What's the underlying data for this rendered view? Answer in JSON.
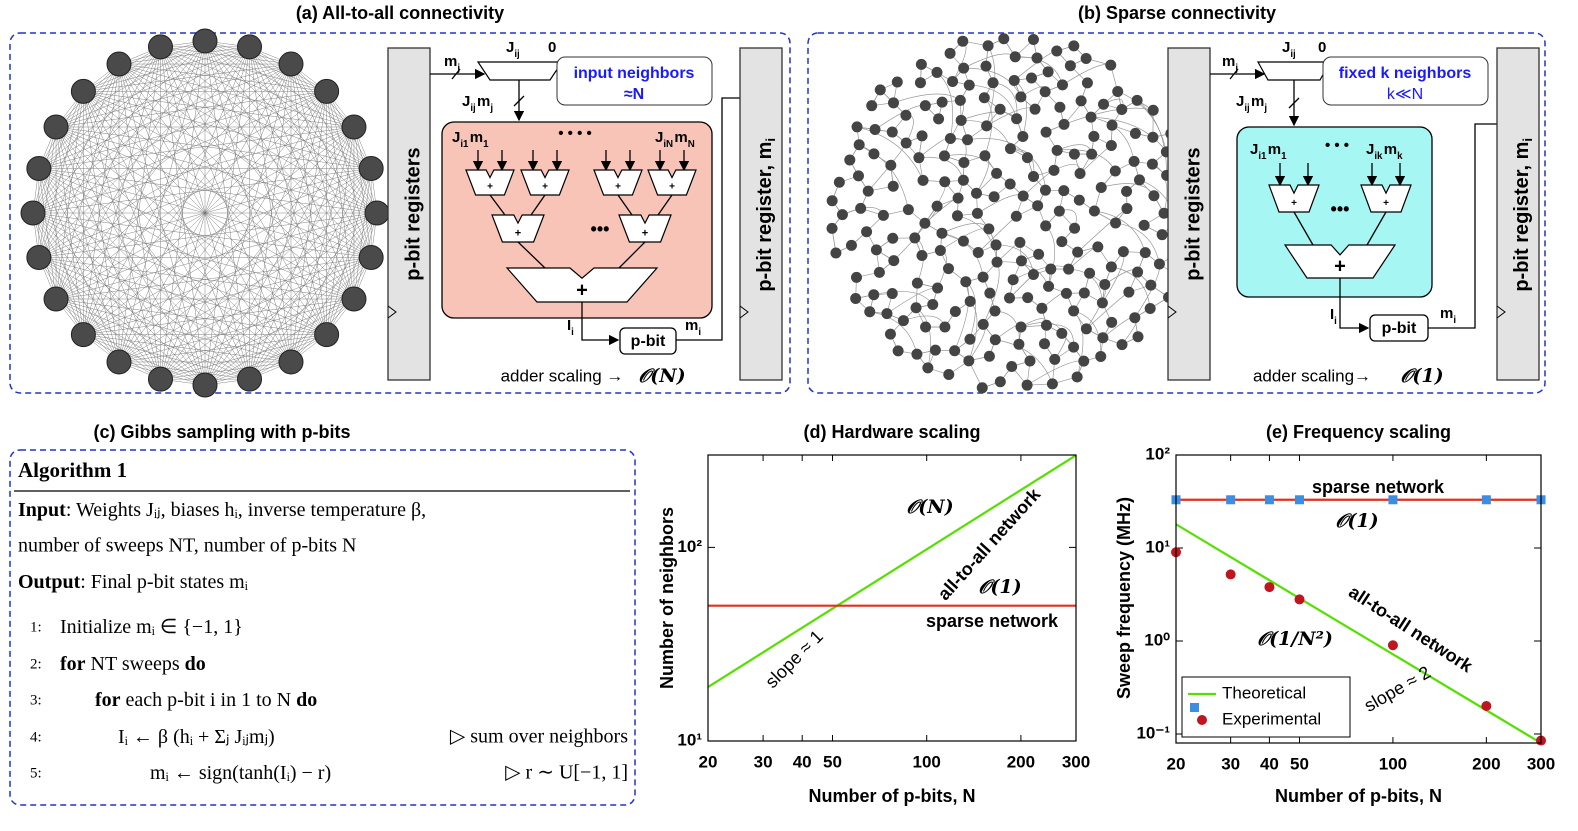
{
  "panel_a": {
    "title": "(a) All-to-all connectivity",
    "registers": "p-bit registers",
    "mux_input": {
      "base": "m",
      "sub": "j"
    },
    "mux_weight": {
      "base": "J",
      "sub": "ij"
    },
    "mux_zero": "0",
    "mux_output": [
      {
        "base": "J",
        "sub": "ij"
      },
      {
        "base": "m",
        "sub": "j"
      }
    ],
    "neighbors": [
      "input neighbors",
      "≈N"
    ],
    "adder_inputs": [
      [
        {
          "base": "J",
          "sub": "i1"
        },
        {
          "base": "m",
          "sub": "1"
        }
      ],
      "• • • •",
      [
        {
          "base": "J",
          "sub": "iN"
        },
        {
          "base": "m",
          "sub": "N"
        }
      ]
    ],
    "adder_sign": "+",
    "ellipsis": "•••",
    "pbit": "p-bit",
    "pbit_input": {
      "base": "I",
      "sub": "i"
    },
    "pbit_output": {
      "base": "m",
      "sub": "i"
    },
    "register_out": {
      "base": "p-bit register, m",
      "sub": "i"
    },
    "scaling_label": "adder scaling →",
    "scaling_value": "𝒪(N)"
  },
  "panel_b": {
    "title": "(b) Sparse connectivity",
    "registers": "p-bit registers",
    "mux_input": {
      "base": "m",
      "sub": "j"
    },
    "mux_weight": {
      "base": "J",
      "sub": "ij"
    },
    "mux_zero": "0",
    "mux_output": [
      {
        "base": "J",
        "sub": "ij"
      },
      {
        "base": "m",
        "sub": "j"
      }
    ],
    "neighbors": [
      "fixed k neighbors",
      "k≪N"
    ],
    "adder_inputs": [
      [
        {
          "base": "J",
          "sub": "i1"
        },
        {
          "base": "m",
          "sub": "1"
        }
      ],
      "• • •",
      [
        {
          "base": "J",
          "sub": "ik"
        },
        {
          "base": "m",
          "sub": "k"
        }
      ]
    ],
    "adder_sign": "+",
    "ellipsis": "•••",
    "pbit": "p-bit",
    "pbit_input": {
      "base": "I",
      "sub": "i"
    },
    "pbit_output": {
      "base": "m",
      "sub": "i"
    },
    "register_out": {
      "base": "p-bit register, m",
      "sub": "i"
    },
    "scaling_label": "adder scaling→",
    "scaling_value": "𝒪(1)"
  },
  "algorithm": {
    "heading": "(c) Gibbs sampling with p-bits",
    "title": "Algorithm 1",
    "input": [
      {
        "text": "Input",
        "bold": true
      },
      ": Weights Jᵢⱼ, biases hᵢ, inverse temperature β,"
    ],
    "input_cont": "number of sweeps NT, number of p-bits N",
    "output": [
      {
        "text": "Output",
        "bold": true
      },
      ": Final p-bit states mᵢ"
    ],
    "steps": [
      {
        "num": "1:",
        "parts": [
          "Initialize mᵢ ∈ {−1, 1}"
        ]
      },
      {
        "num": "2:",
        "parts": [
          {
            "text": "for",
            "bold": true
          },
          " NT sweeps ",
          {
            "text": "do",
            "bold": true
          }
        ]
      },
      {
        "num": "3:",
        "parts": [
          {
            "text": "for",
            "bold": true
          },
          " each p-bit i in 1 to N ",
          {
            "text": "do",
            "bold": true
          }
        ]
      },
      {
        "num": "4:",
        "parts": [
          "Iᵢ ← β (hᵢ + Σⱼ Jᵢⱼmⱼ)"
        ],
        "comment": "▷ sum over neighbors"
      },
      {
        "num": "5:",
        "parts": [
          "mᵢ ← sign(tanh(Iᵢ) − r)"
        ],
        "comment": "▷ r ∼ U[−1, 1]"
      }
    ]
  },
  "chart_data": [
    {
      "type": "line",
      "title": "(d) Hardware scaling",
      "xlabel": "Number of p-bits, N",
      "ylabel": "Number of neighbors",
      "xscale": "log",
      "yscale": "log",
      "xlim": [
        20,
        300
      ],
      "ylim": [
        10,
        300
      ],
      "xticks": [
        20,
        30,
        40,
        50,
        100,
        200,
        300
      ],
      "yticks": [
        {
          "value": 10,
          "label": "10¹"
        },
        {
          "value": 100,
          "label": "10²"
        }
      ],
      "x": [
        20,
        300
      ],
      "series": [
        {
          "color": "#55e000",
          "marker": "line",
          "values": [
            19,
            299
          ]
        },
        {
          "color": "#e0301e",
          "marker": "line",
          "values": [
            50,
            50
          ]
        }
      ],
      "annotations": [
        "𝒪(N)",
        "all-to-all network",
        "𝒪(1)",
        "sparse network",
        "slope ≈ 1"
      ]
    },
    {
      "type": "line",
      "title": "(e) Frequency scaling",
      "xlabel": "Number of p-bits, N",
      "ylabel": "Sweep frequency (MHz)",
      "xscale": "log",
      "yscale": "log",
      "xlim": [
        20,
        300
      ],
      "ylim": [
        0.08,
        100
      ],
      "xticks": [
        20,
        30,
        40,
        50,
        100,
        200,
        300
      ],
      "yticks": [
        {
          "value": 0.1,
          "label": "10⁻¹"
        },
        {
          "value": 1,
          "label": "10⁰"
        },
        {
          "value": 10,
          "label": "10¹"
        },
        {
          "value": 100,
          "label": "10²"
        }
      ],
      "x": [
        20,
        30,
        40,
        50,
        100,
        200,
        300
      ],
      "series": [
        {
          "name": "Theoretical",
          "color": "#55e000",
          "marker": "line",
          "values": [
            18,
            8,
            4.5,
            2.88,
            0.72,
            0.18,
            0.08
          ]
        },
        {
          "color": "#e0301e",
          "marker": "line",
          "values": [
            33,
            33,
            33,
            33,
            33,
            33,
            33
          ]
        },
        {
          "color": "#3a8ee6",
          "marker": "square",
          "values": [
            33,
            33,
            33,
            33,
            33,
            33,
            33
          ]
        },
        {
          "name": "Experimental",
          "color": "#c0141e",
          "marker": "circle",
          "values": [
            9,
            5.2,
            3.8,
            2.8,
            0.9,
            0.2,
            0.085
          ]
        }
      ],
      "legend": "lower left",
      "annotations": [
        "sparse network",
        "𝒪(1)",
        "all-to-all network",
        "𝒪(1/N²)",
        "slope ≈ 2"
      ]
    }
  ]
}
